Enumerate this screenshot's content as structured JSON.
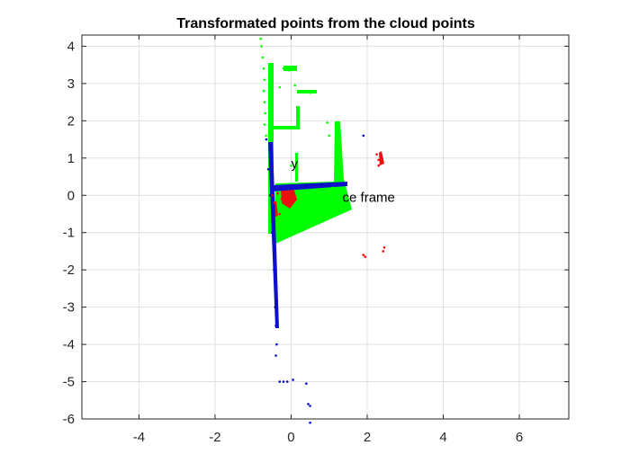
{
  "chart_data": {
    "type": "scatter",
    "title": "Transformated points from the cloud points",
    "xlabel": "",
    "ylabel": "",
    "xlim": [
      -5.5,
      7.3
    ],
    "ylim": [
      -6,
      4.3
    ],
    "x_ticks": [
      -4,
      -2,
      0,
      2,
      4,
      6
    ],
    "y_ticks": [
      4,
      3,
      2,
      1,
      0,
      -1,
      -2,
      -3,
      -4,
      -5,
      -6
    ],
    "x_tick_labels": [
      "-4",
      "-2",
      "0",
      "2",
      "4",
      "6"
    ],
    "y_tick_labels": [
      "4",
      "3",
      "2",
      "1",
      "0",
      "-1",
      "-2",
      "-3",
      "-4",
      "-5",
      "-6"
    ],
    "grid": true,
    "annotations": [
      {
        "text": "y",
        "x": 0.0,
        "y": 0.85
      },
      {
        "text": "ce frame",
        "x": 1.35,
        "y": -0.05
      }
    ],
    "series": [
      {
        "color": "#00ff00",
        "marker": "point",
        "x": [
          -0.8,
          -0.78,
          -0.75,
          -0.72,
          -0.7,
          -0.72,
          -0.7,
          -0.68,
          -0.7,
          -0.66,
          -0.2,
          -0.05,
          0.1,
          -0.3,
          0.5,
          0.0,
          0.2,
          0.4,
          0.6,
          0.8,
          0.95,
          1.0,
          1.1,
          1.2,
          0.9
        ],
        "y": [
          4.2,
          4.0,
          3.7,
          3.4,
          3.1,
          2.8,
          2.5,
          2.2,
          1.9,
          1.6,
          3.4,
          3.35,
          2.95,
          2.9,
          2.75,
          0.8,
          -0.4,
          -0.5,
          -0.6,
          -0.7,
          1.95,
          1.6,
          0.2,
          -0.3,
          0.0
        ]
      },
      {
        "color": "#ff0000",
        "marker": "point",
        "x": [
          -0.5,
          -0.45,
          -0.35,
          -0.25,
          -0.3,
          2.25,
          2.3,
          2.3,
          2.35,
          1.9,
          1.95,
          2.45,
          2.42
        ],
        "y": [
          0.0,
          -0.2,
          0.05,
          -0.1,
          -0.5,
          1.1,
          0.95,
          0.8,
          0.85,
          -1.6,
          -1.65,
          -1.4,
          -1.5
        ]
      },
      {
        "color": "#0000cc",
        "marker": "point",
        "x": [
          -0.65,
          -0.6,
          -0.55,
          -0.5,
          -0.45,
          -0.42,
          -0.4,
          -0.38,
          0.0,
          0.4,
          0.8,
          1.2,
          -0.3,
          -0.2,
          -0.1,
          0.05,
          0.4,
          0.45,
          0.5,
          0.5,
          1.9,
          -0.4
        ],
        "y": [
          1.5,
          0.7,
          0.0,
          -1.0,
          -2.0,
          -3.0,
          -3.5,
          -4.0,
          0.2,
          0.25,
          0.3,
          0.3,
          -5.0,
          -5.0,
          -5.0,
          -4.95,
          -5.05,
          -5.6,
          -5.65,
          -6.1,
          1.6,
          -4.3
        ]
      }
    ]
  }
}
